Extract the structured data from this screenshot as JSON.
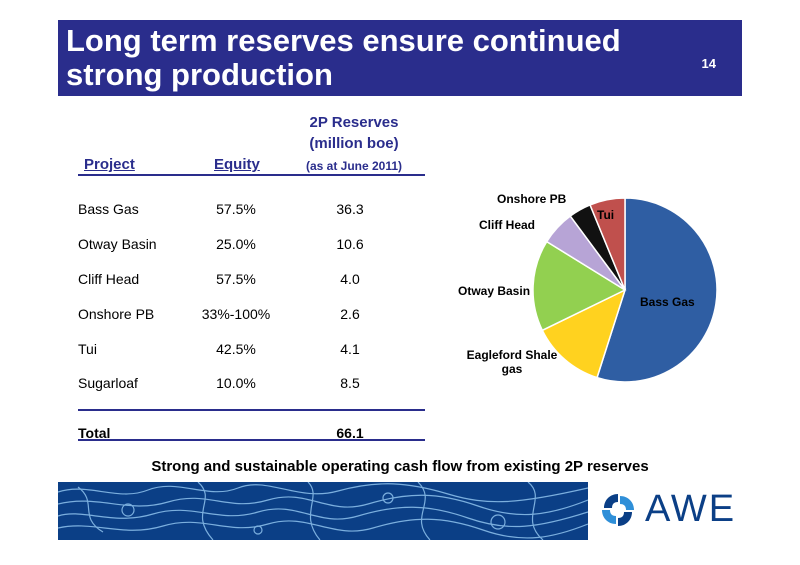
{
  "slide": {
    "title": "Long term reserves ensure continued\nstrong production",
    "page_number": "14",
    "tagline": "Strong and sustainable operating cash flow from existing 2P reserves",
    "logo_text": "AWE"
  },
  "table": {
    "headers": {
      "project": "Project",
      "equity": "Equity",
      "reserves_line1": "2P Reserves",
      "reserves_line2": "(million boe)",
      "reserves_line3": "(as at June 2011)"
    },
    "rows": [
      {
        "project": "Bass Gas",
        "equity": "57.5%",
        "reserves": "36.3"
      },
      {
        "project": "Otway Basin",
        "equity": "25.0%",
        "reserves": "10.6"
      },
      {
        "project": "Cliff Head",
        "equity": "57.5%",
        "reserves": "4.0"
      },
      {
        "project": "Onshore PB",
        "equity": "33%-100%",
        "reserves": "2.6"
      },
      {
        "project": "Tui",
        "equity": "42.5%",
        "reserves": "4.1"
      },
      {
        "project": "Sugarloaf",
        "equity": "10.0%",
        "reserves": "8.5"
      }
    ],
    "total": {
      "label": "Total",
      "value": "66.1"
    }
  },
  "chart_data": {
    "type": "pie",
    "title": "",
    "labels": [
      "Bass Gas",
      "Eagleford Shale\ngas",
      "Otway Basin",
      "Cliff Head",
      "Onshore PB",
      "Tui"
    ],
    "values": [
      36.3,
      8.5,
      10.6,
      4.0,
      2.6,
      4.1
    ],
    "colors": [
      "#2f5ea3",
      "#ffd21f",
      "#92d050",
      "#b7a4d6",
      "#111111",
      "#c0504d"
    ]
  },
  "colors": {
    "accent": "#2a2d8c",
    "brand_blue": "#0b3f86"
  }
}
